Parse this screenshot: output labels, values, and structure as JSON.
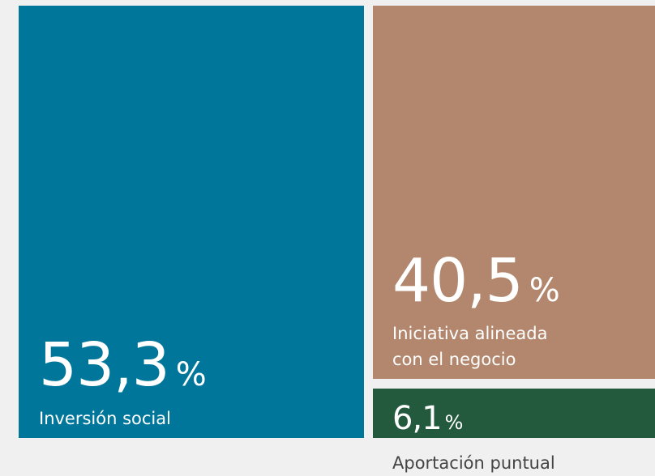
{
  "chart_data": {
    "type": "treemap",
    "unit": "%",
    "items": [
      {
        "label": "Inversión social",
        "value_text": "53,3",
        "value": 53.3,
        "color": "#00769b"
      },
      {
        "label_lines": [
          "Iniciativa alineada",
          "con el negocio"
        ],
        "value_text": "40,5",
        "value": 40.5,
        "color": "#b3876d"
      },
      {
        "label": "Aportación puntual",
        "value_text": "6,1",
        "value": 6.1,
        "color": "#235a3d"
      }
    ]
  }
}
